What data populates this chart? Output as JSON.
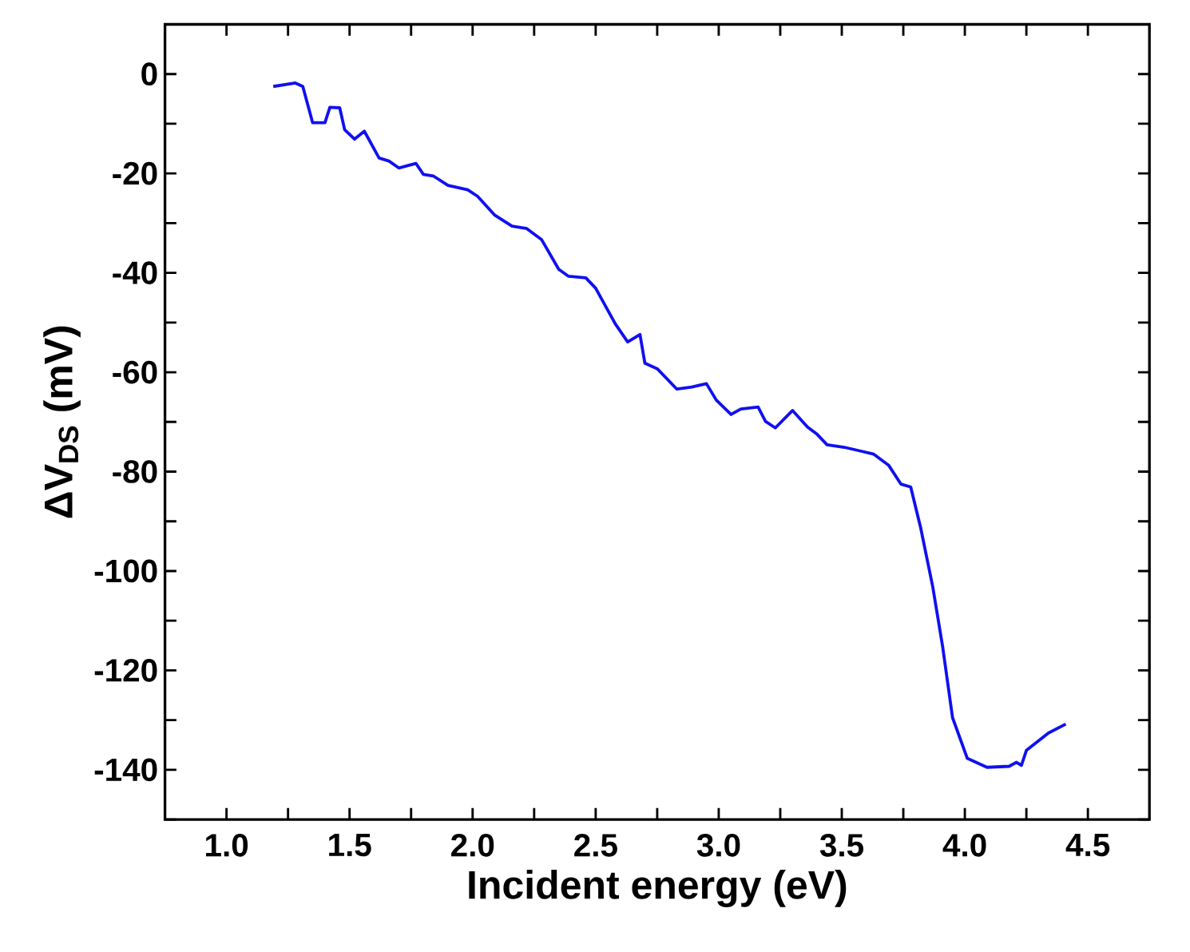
{
  "chart_data": {
    "type": "line",
    "xlabel": "Incident energy (eV)",
    "ylabel": "ΔV$_{DS}$ (mV)",
    "xlim": [
      0.75,
      4.75
    ],
    "ylim": [
      -150,
      10
    ],
    "xticks": [
      {
        "value": 1,
        "label": "1.0"
      },
      {
        "value": 1.25,
        "label": null
      },
      1.5,
      {
        "value": 1.75,
        "label": null
      },
      {
        "value": 2,
        "label": "2.0"
      },
      {
        "value": 2.25,
        "label": null
      },
      2.5,
      {
        "value": 2.75,
        "label": null
      },
      {
        "value": 3,
        "label": "3.0"
      },
      {
        "value": 3.25,
        "label": null
      },
      3.5,
      {
        "value": 3.75,
        "label": null
      },
      {
        "value": 4,
        "label": "4.0"
      },
      {
        "value": 4.25,
        "label": null
      },
      4.5
    ],
    "yticks": [
      {
        "value": -150,
        "label": null
      },
      -140,
      {
        "value": -130,
        "label": null
      },
      -120,
      {
        "value": -110,
        "label": null
      },
      -100,
      {
        "value": -90,
        "label": null
      },
      -80,
      {
        "value": -70,
        "label": null
      },
      -60,
      {
        "value": -50,
        "label": null
      },
      -40,
      {
        "value": -30,
        "label": null
      },
      -20,
      {
        "value": -10,
        "label": null
      },
      0,
      {
        "value": 10,
        "label": null
      }
    ],
    "grid": false,
    "marker": "none",
    "line_style": "solid",
    "series": [
      {
        "color": "#1010f0",
        "x": [
          1.19,
          1.28,
          1.31,
          1.35,
          1.4,
          1.42,
          1.46,
          1.48,
          1.52,
          1.56,
          1.62,
          1.66,
          1.7,
          1.77,
          1.8,
          1.84,
          1.9,
          1.98,
          2.02,
          2.09,
          2.16,
          2.22,
          2.28,
          2.35,
          2.39,
          2.46,
          2.5,
          2.58,
          2.63,
          2.68,
          2.7,
          2.75,
          2.83,
          2.89,
          2.95,
          2.99,
          3.05,
          3.09,
          3.16,
          3.19,
          3.23,
          3.3,
          3.36,
          3.4,
          3.44,
          3.51,
          3.58,
          3.63,
          3.69,
          3.74,
          3.78,
          3.82,
          3.87,
          3.91,
          3.95,
          4.01,
          4.09,
          4.18,
          4.21,
          4.23,
          4.25,
          4.34,
          4.41
        ],
        "values": [
          -2.5,
          -1.8,
          -2.5,
          -9.8,
          -9.8,
          -6.7,
          -6.8,
          -11.2,
          -13.1,
          -11.5,
          -16.9,
          -17.5,
          -18.9,
          -18.0,
          -20.2,
          -20.5,
          -22.4,
          -23.3,
          -24.6,
          -28.4,
          -30.6,
          -31.1,
          -33.3,
          -39.3,
          -40.7,
          -41.0,
          -43.1,
          -50.3,
          -53.9,
          -52.4,
          -58.2,
          -59.3,
          -63.4,
          -63.0,
          -62.3,
          -65.6,
          -68.5,
          -67.4,
          -67.0,
          -69.9,
          -71.2,
          -67.7,
          -71.0,
          -72.5,
          -74.6,
          -75.1,
          -75.9,
          -76.5,
          -78.7,
          -82.5,
          -83.1,
          -91.2,
          -103.3,
          -115.3,
          -129.5,
          -137.7,
          -139.5,
          -139.3,
          -138.5,
          -139.1,
          -136.1,
          -132.6,
          -130.8
        ]
      }
    ]
  }
}
